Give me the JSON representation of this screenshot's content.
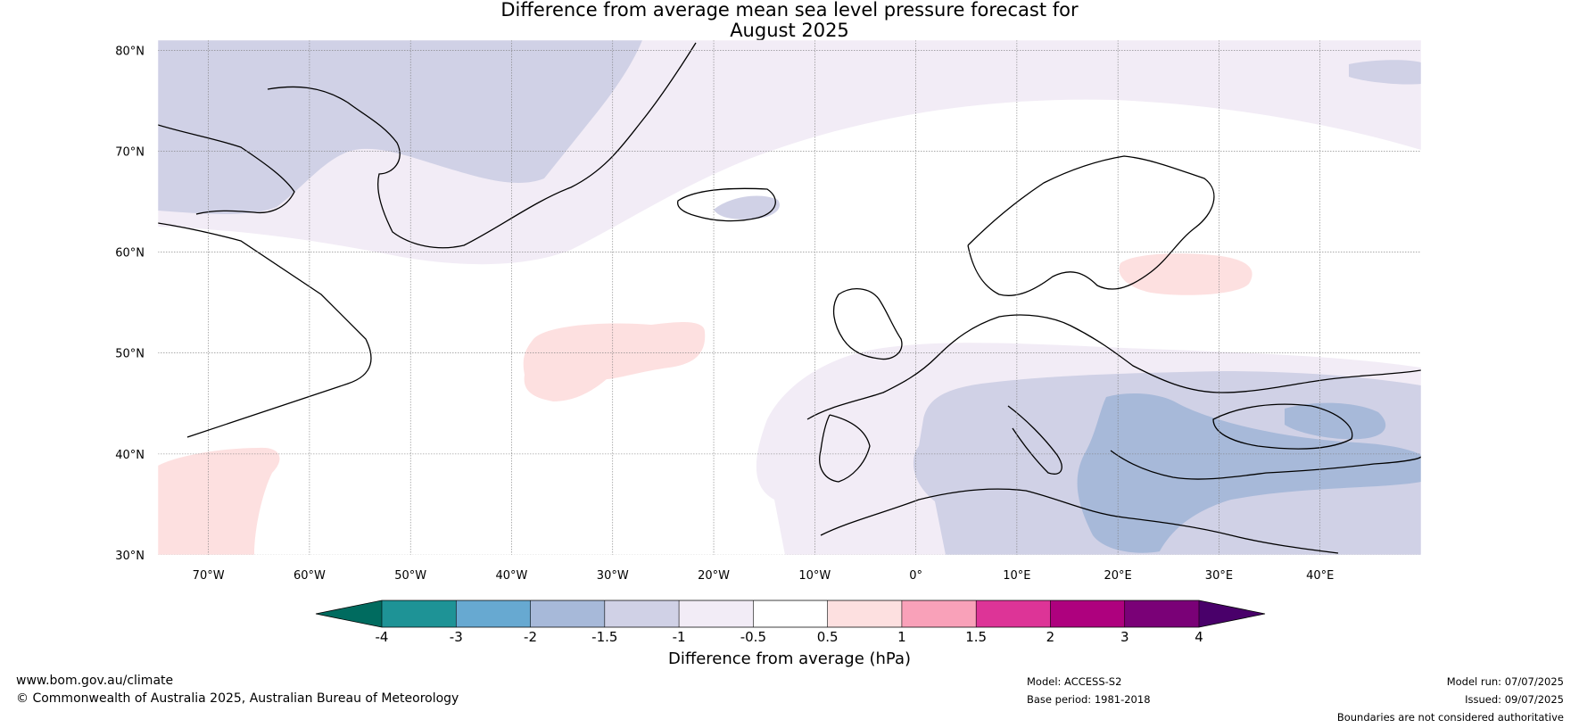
{
  "title": {
    "line1": "Difference from average mean sea level pressure forecast for",
    "line2": "August 2025"
  },
  "map": {
    "lat_labels": [
      "80°N",
      "70°N",
      "60°N",
      "50°N",
      "40°N",
      "30°N"
    ],
    "lon_labels": [
      "70°W",
      "60°W",
      "50°W",
      "40°W",
      "30°W",
      "20°W",
      "10°W",
      "0°",
      "10°E",
      "20°E",
      "30°E",
      "40°E"
    ],
    "extent": {
      "lon_min": -75,
      "lon_max": 50,
      "lat_min": 30,
      "lat_max": 81
    }
  },
  "colorbar": {
    "title": "Difference from average (hPa)",
    "ticks": [
      "-4",
      "-3",
      "-2",
      "-1.5",
      "-1",
      "-0.5",
      "0.5",
      "1",
      "1.5",
      "2",
      "3",
      "4"
    ],
    "colors": {
      "below_min": "#006b5f",
      "bins": [
        "#1e9396",
        "#67a9d1",
        "#a7b9d9",
        "#d0d1e6",
        "#f2ecf6",
        "#ffffff",
        "#fde0e0",
        "#f9a1b9",
        "#dd3497",
        "#ae017e",
        "#7a0177"
      ],
      "above_max": "#49006a"
    }
  },
  "footer": {
    "website": "www.bom.gov.au/climate",
    "copyright": "© Commonwealth of Australia 2025, Australian Bureau of Meteorology",
    "model": "Model: ACCESS-S2",
    "base_period": "Base period: 1981-2018",
    "model_run": "Model run: 07/07/2025",
    "issued": "Issued: 09/07/2025",
    "disclaimer": "Boundaries are not considered authoritative"
  }
}
